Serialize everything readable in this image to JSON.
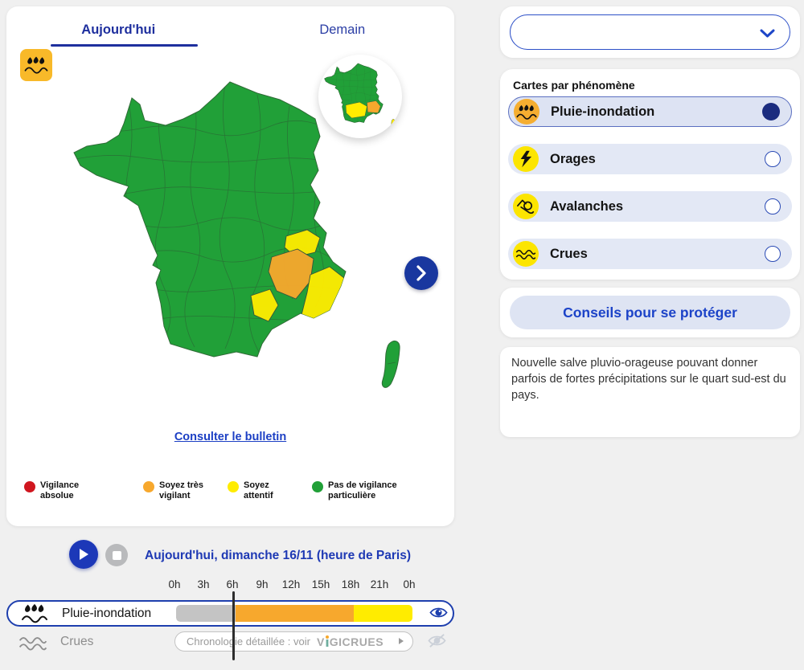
{
  "colors": {
    "grey": "#c4c4c4",
    "orange": "#f7a82d",
    "yellow": "#ffec00",
    "green": "#21a038",
    "red": "#d0161f",
    "navy": "#1b2c7f",
    "blue": "#1e3fae"
  },
  "left_panel": {
    "tabs": [
      {
        "label": "Aujourd'hui",
        "active": true
      },
      {
        "label": "Demain",
        "active": false
      }
    ],
    "phenomenon_badge": "pluie-inondation",
    "bulletin_link": "Consulter le bulletin",
    "legend": [
      {
        "label": "Vigilance\nabsolue",
        "color": "#d0161f"
      },
      {
        "label": "Soyez très\nvigilant",
        "color": "#f7a82d"
      },
      {
        "label": "Soyez\nattentif",
        "color": "#ffec00"
      },
      {
        "label": "Pas de vigilance\nparticulière",
        "color": "#21a038"
      }
    ]
  },
  "timeline": {
    "title": "Aujourd'hui, dimanche 16/11 (heure de Paris)",
    "hours": [
      "0h",
      "3h",
      "6h",
      "9h",
      "12h",
      "15h",
      "18h",
      "21h",
      "0h"
    ],
    "cursor_hour": 6,
    "rows": [
      {
        "label": "Pluie-inondation",
        "visible": true,
        "segments": [
          {
            "color": "grey",
            "from": 0,
            "to": 6
          },
          {
            "color": "orange",
            "from": 6,
            "to": 18
          },
          {
            "color": "yellow",
            "from": 18,
            "to": 24
          }
        ]
      },
      {
        "label": "Crues",
        "visible": false,
        "button_text": "Chronologie détaillée : voir",
        "brand_prefix": "V",
        "brand_suffix": "GICRUES"
      }
    ]
  },
  "sidebar": {
    "section_title": "Cartes par phénomène",
    "items": [
      {
        "label": "Pluie-inondation",
        "selected": true
      },
      {
        "label": "Orages",
        "selected": false
      },
      {
        "label": "Avalanches",
        "selected": false
      },
      {
        "label": "Crues",
        "selected": false
      }
    ],
    "advice_button": "Conseils pour se protéger",
    "description": "Nouvelle salve pluvio-orageuse pouvant donner parfois de fortes précipitations sur le quart sud-est du pays."
  }
}
